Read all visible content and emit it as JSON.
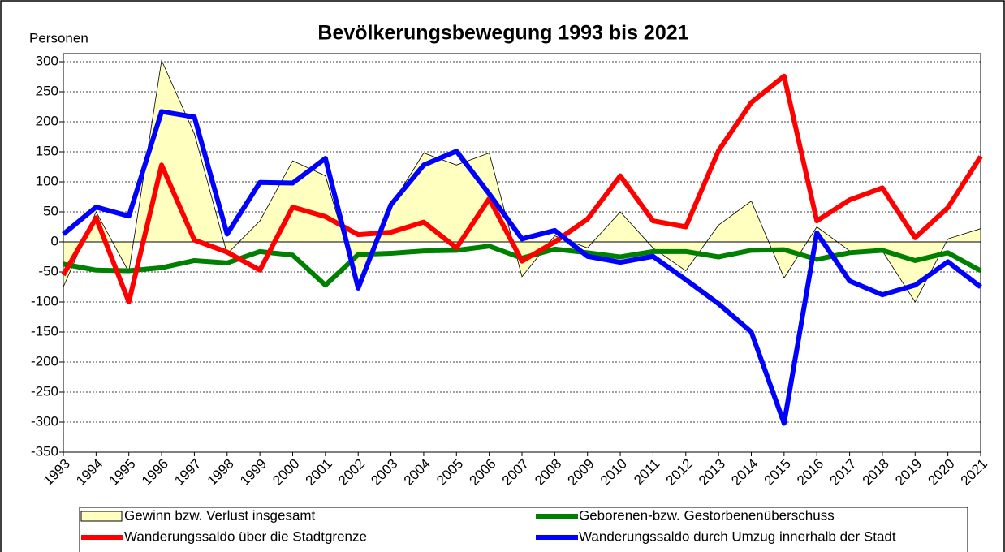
{
  "chart_data": {
    "type": "line",
    "title": "Bevölkerungsbewegung 1993 bis 2021",
    "y_label": "Personen",
    "categories": [
      "1993",
      "1994",
      "1995",
      "1996",
      "1997",
      "1998",
      "1999",
      "2000",
      "2001",
      "2002",
      "2003",
      "2004",
      "2005",
      "2006",
      "2007",
      "2008",
      "2009",
      "2010",
      "2011",
      "2012",
      "2013",
      "2014",
      "2015",
      "2016",
      "2017",
      "2018",
      "2019",
      "2020",
      "2021"
    ],
    "series": [
      {
        "name": "Gewinn bzw. Verlust insgesamt",
        "type": "area",
        "color": "#ffffc0",
        "values": [
          -75,
          50,
          -50,
          302,
          180,
          -20,
          35,
          135,
          110,
          -75,
          60,
          148,
          128,
          148,
          -58,
          10,
          -10,
          50,
          -10,
          -48,
          28,
          68,
          -60,
          25,
          -15,
          -15,
          -100,
          5,
          22
        ]
      },
      {
        "name": "Geborenen-bzw. Gestorbenenüberschuss",
        "type": "line",
        "color": "#008000",
        "values": [
          -37,
          -47,
          -48,
          -43,
          -31,
          -35,
          -16,
          -22,
          -72,
          -21,
          -19,
          -15,
          -14,
          -7,
          -27,
          -12,
          -18,
          -25,
          -16,
          -16,
          -25,
          -14,
          -13,
          -29,
          -18,
          -14,
          -31,
          -18,
          -48
        ]
      },
      {
        "name": "Wanderungssaldo über die Stadtgrenze",
        "type": "line",
        "color": "#ff0000",
        "values": [
          -55,
          40,
          -100,
          128,
          3,
          -17,
          -47,
          58,
          42,
          12,
          16,
          33,
          -10,
          72,
          -32,
          0,
          38,
          110,
          35,
          25,
          152,
          232,
          276,
          35,
          70,
          90,
          7,
          57,
          142
        ]
      },
      {
        "name": "Wanderungssaldo durch Umzug innerhalb der Stadt",
        "type": "line",
        "color": "#0000ff",
        "values": [
          13,
          58,
          43,
          217,
          208,
          13,
          99,
          98,
          139,
          -77,
          62,
          128,
          151,
          80,
          5,
          19,
          -24,
          -34,
          -24,
          -63,
          -103,
          -150,
          -302,
          15,
          -65,
          -88,
          -72,
          -33,
          -75
        ]
      }
    ],
    "ylim": [
      -350,
      300
    ],
    "yticks": [
      300,
      250,
      200,
      150,
      100,
      50,
      0,
      -50,
      -100,
      -150,
      -200,
      -250,
      -300,
      -350
    ],
    "grid": true
  }
}
